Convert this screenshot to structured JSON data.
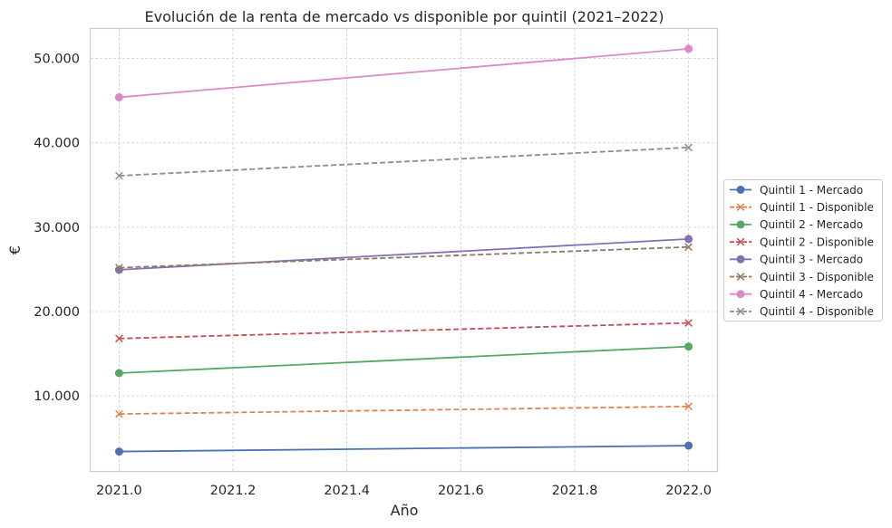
{
  "chart_data": {
    "type": "line",
    "title": "Evolución de la renta de mercado vs disponible por quintil (2021–2022)",
    "xlabel": "Año",
    "ylabel": "€",
    "x": [
      2021,
      2022
    ],
    "xlim": [
      2020.95,
      2022.05
    ],
    "ylim": [
      1100,
      53500
    ],
    "xticks": [
      2021.0,
      2021.2,
      2021.4,
      2021.6,
      2021.8,
      2022.0
    ],
    "xtick_labels": [
      "2021.0",
      "2021.2",
      "2021.4",
      "2021.6",
      "2021.8",
      "2022.0"
    ],
    "yticks": [
      10000,
      20000,
      30000,
      40000,
      50000
    ],
    "ytick_labels": [
      "10.000",
      "20.000",
      "30.000",
      "40.000",
      "50.000"
    ],
    "grid": true,
    "legend_position": "center-right outside",
    "series": [
      {
        "name": "Quintil 1 - Mercado",
        "values": [
          3400,
          4100
        ],
        "color": "#4c72b0",
        "style": "solid",
        "marker": "circle"
      },
      {
        "name": "Quintil 1 - Disponible",
        "values": [
          7850,
          8750
        ],
        "color": "#dd8452",
        "style": "dashed",
        "marker": "x"
      },
      {
        "name": "Quintil 2 - Mercado",
        "values": [
          12700,
          15850
        ],
        "color": "#55a868",
        "style": "solid",
        "marker": "circle"
      },
      {
        "name": "Quintil 2 - Disponible",
        "values": [
          16800,
          18650
        ],
        "color": "#c44e52",
        "style": "dashed",
        "marker": "x"
      },
      {
        "name": "Quintil 3 - Mercado",
        "values": [
          24950,
          28600
        ],
        "color": "#8172b3",
        "style": "solid",
        "marker": "circle"
      },
      {
        "name": "Quintil 3 - Disponible",
        "values": [
          25200,
          27650
        ],
        "color": "#937860",
        "style": "dashed",
        "marker": "x"
      },
      {
        "name": "Quintil 4 - Mercado",
        "values": [
          45400,
          51150
        ],
        "color": "#da8bc3",
        "style": "solid",
        "marker": "circle"
      },
      {
        "name": "Quintil 4 - Disponible",
        "values": [
          36100,
          39450
        ],
        "color": "#8c8c8c",
        "style": "dashed",
        "marker": "x"
      }
    ]
  }
}
